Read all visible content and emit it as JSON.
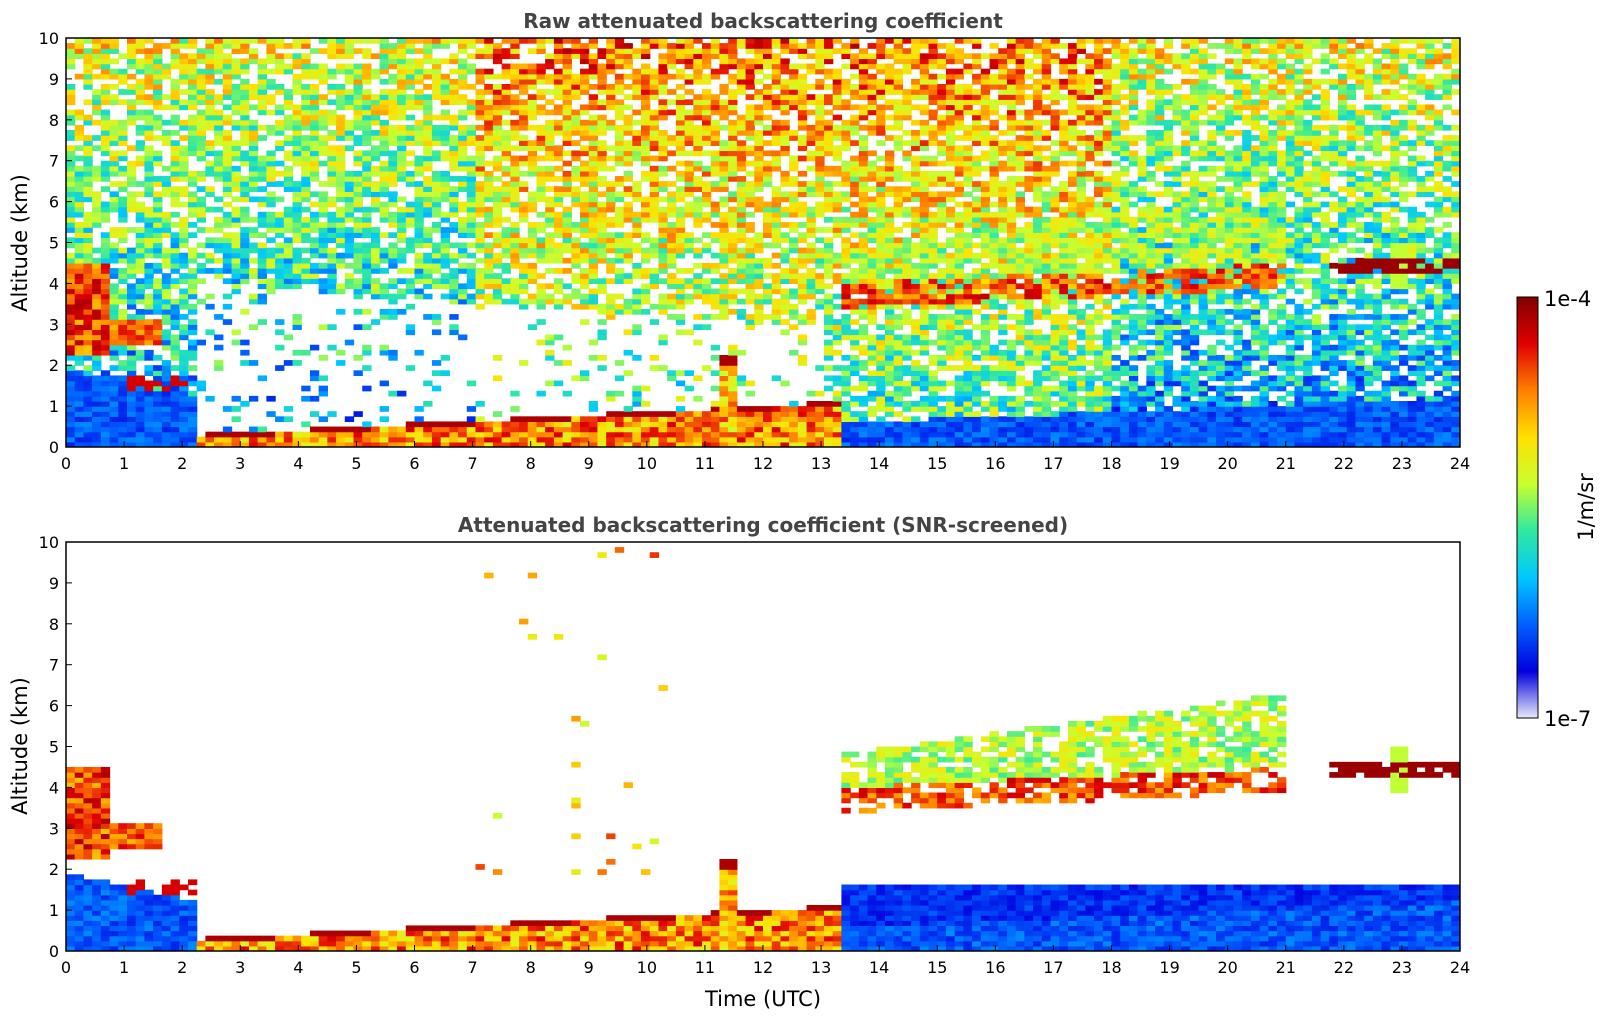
{
  "chart_data": [
    {
      "type": "heatmap",
      "title": "Raw attenuated backscattering coefficient",
      "xlabel": "",
      "ylabel": "Altitude (km)",
      "xlim": [
        0,
        24
      ],
      "ylim": [
        0,
        10
      ],
      "xticks": [
        0,
        1,
        2,
        3,
        4,
        5,
        6,
        7,
        8,
        9,
        10,
        11,
        12,
        13,
        14,
        15,
        16,
        17,
        18,
        19,
        20,
        21,
        22,
        23,
        24
      ],
      "yticks": [
        0,
        1,
        2,
        3,
        4,
        5,
        6,
        7,
        8,
        9,
        10
      ],
      "grid": false,
      "features": [
        {
          "label": "boundary layer",
          "x": [
            0,
            24
          ],
          "top_km": [
            1.9,
            1.0
          ],
          "level": 0.2
        },
        {
          "label": "cloud base layer",
          "x": [
            0.0,
            2.3
          ],
          "top_km": [
            2.8,
            1.9
          ],
          "level": 0.95
        },
        {
          "label": "low aerosol layer",
          "x": [
            2.3,
            13.3
          ],
          "top_km": [
            0.3,
            1.1
          ],
          "level": 0.8
        },
        {
          "label": "plume",
          "x": [
            11.2,
            11.5
          ],
          "top_km": [
            2.3,
            2.3
          ],
          "level": 0.85
        },
        {
          "label": "mid cloud",
          "x": [
            13.3,
            21.0
          ],
          "base_km": [
            3.4,
            3.9
          ],
          "top_km": [
            5.3,
            6.3
          ],
          "level": 0.65
        },
        {
          "label": "thin cloud",
          "x": [
            21.8,
            24.0
          ],
          "base_km": [
            4.3,
            4.2
          ],
          "top_km": [
            4.6,
            4.3
          ],
          "level": 0.97
        }
      ]
    },
    {
      "type": "heatmap",
      "title": "Attenuated backscattering coefficient (SNR-screened)",
      "xlabel": "Time (UTC)",
      "ylabel": "Altitude (km)",
      "xlim": [
        0,
        24
      ],
      "ylim": [
        0,
        10
      ],
      "xticks": [
        0,
        1,
        2,
        3,
        4,
        5,
        6,
        7,
        8,
        9,
        10,
        11,
        12,
        13,
        14,
        15,
        16,
        17,
        18,
        19,
        20,
        21,
        22,
        23,
        24
      ],
      "yticks": [
        0,
        1,
        2,
        3,
        4,
        5,
        6,
        7,
        8,
        9,
        10
      ],
      "grid": false
    }
  ],
  "colorbar": {
    "label": "1/m/sr",
    "max_label": "1e-4",
    "min_label": "1e-7",
    "colormap": [
      "#e8e8f8",
      "#0000e0",
      "#0060ff",
      "#00c8ff",
      "#30e8a0",
      "#c8ff30",
      "#ffe000",
      "#ff8000",
      "#e00000",
      "#800000"
    ]
  }
}
